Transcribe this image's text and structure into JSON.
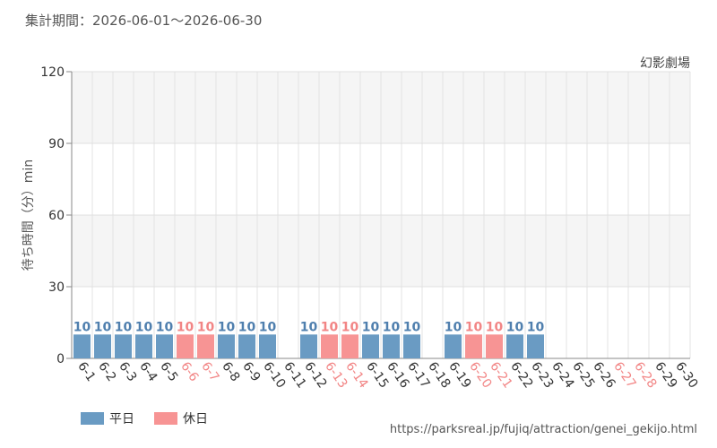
{
  "header": {
    "period_label": "集計期間：",
    "period_range": "2026-06-01〜2026-06-30",
    "attraction": "幻影劇場"
  },
  "legend": {
    "weekday": "平日",
    "holiday": "休日"
  },
  "source_url": "https://parksreal.jp/fujiq/attraction/genei_gekijo.html",
  "colors": {
    "weekday": "#6a9bc3",
    "holiday": "#f79494",
    "weekday_label": "#4f7fae",
    "holiday_label": "#f28585",
    "band": "#f5f5f5"
  },
  "chart_data": {
    "type": "bar",
    "ylabel": "待ち時間（分）min",
    "ylim": [
      0,
      120
    ],
    "yticks": [
      0,
      30,
      60,
      90,
      120
    ],
    "grid": true,
    "legend_position": "bottom-left",
    "categories": [
      "6-1",
      "6-2",
      "6-3",
      "6-4",
      "6-5",
      "6-6",
      "6-7",
      "6-8",
      "6-9",
      "6-10",
      "6-11",
      "6-12",
      "6-13",
      "6-14",
      "6-15",
      "6-16",
      "6-17",
      "6-18",
      "6-19",
      "6-20",
      "6-21",
      "6-22",
      "6-23",
      "6-24",
      "6-25",
      "6-26",
      "6-27",
      "6-28",
      "6-29",
      "6-30"
    ],
    "day_type": [
      "weekday",
      "weekday",
      "weekday",
      "weekday",
      "weekday",
      "holiday",
      "holiday",
      "weekday",
      "weekday",
      "weekday",
      "weekday",
      "weekday",
      "holiday",
      "holiday",
      "weekday",
      "weekday",
      "weekday",
      "weekday",
      "weekday",
      "holiday",
      "holiday",
      "weekday",
      "weekday",
      "weekday",
      "weekday",
      "weekday",
      "holiday",
      "holiday",
      "weekday",
      "weekday"
    ],
    "series": [
      {
        "name": "待ち時間",
        "values": [
          10,
          10,
          10,
          10,
          10,
          10,
          10,
          10,
          10,
          10,
          null,
          10,
          10,
          10,
          10,
          10,
          10,
          null,
          10,
          10,
          10,
          10,
          10,
          null,
          null,
          null,
          null,
          null,
          null,
          null
        ]
      }
    ]
  }
}
